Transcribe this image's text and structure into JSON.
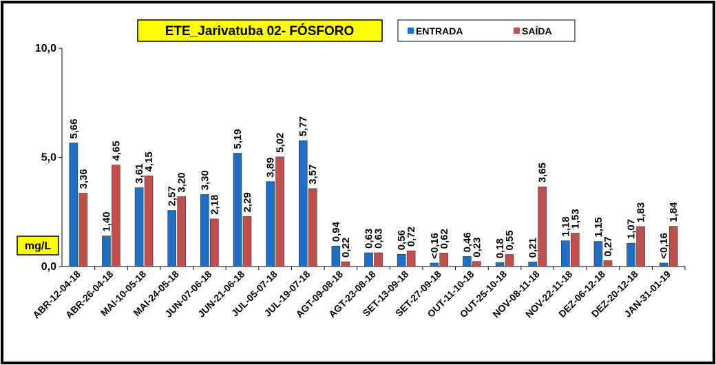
{
  "chart_data": {
    "type": "bar",
    "title": "ETE_Jarivatuba 02- FÓSFORO",
    "y_label": "mg/L",
    "categories": [
      "ABR-12-04-18",
      "ABR-26-04-18",
      "MAI-10-05-18",
      "MAI-24-05-18",
      "JUN-07-06-18",
      "JUN-21-06-18",
      "JUL-05-07-18",
      "JUL-19-07-18",
      "AGT-09-08-18",
      "AGT-23-08-18",
      "SET-13-09-18",
      "SET-27-09-18",
      "OUT-11-10-18",
      "OUT-25-10-18",
      "NOV-08-11-18",
      "NOV-22-11-18",
      "DEZ-06-12-18",
      "DEZ-20-12-18",
      "JAN-31-01-19"
    ],
    "series": [
      {
        "name": "ENTRADA",
        "color": "#1f6fc5",
        "values": [
          5.66,
          1.4,
          3.61,
          2.57,
          3.3,
          5.19,
          3.89,
          5.77,
          0.94,
          0.63,
          0.56,
          0.16,
          0.46,
          0.18,
          0.21,
          1.18,
          1.15,
          1.07,
          0.16
        ],
        "value_labels": [
          "5,66",
          "1,40",
          "3,61",
          "2,57",
          "3,30",
          "5,19",
          "3,89",
          "5,77",
          "0,94",
          "0,63",
          "0,56",
          "<0,16",
          "0,46",
          "0,18",
          "0,21",
          "1,18",
          "1,15",
          "1,07",
          "<0,16"
        ]
      },
      {
        "name": "SAÍDA",
        "color": "#c0504d",
        "values": [
          3.36,
          4.65,
          4.15,
          3.2,
          2.18,
          2.29,
          5.02,
          3.57,
          0.22,
          0.63,
          0.72,
          0.62,
          0.23,
          0.55,
          3.65,
          1.53,
          0.27,
          1.83,
          1.84
        ],
        "value_labels": [
          "3,36",
          "4,65",
          "4,15",
          "3,20",
          "2,18",
          "2,29",
          "5,02",
          "3,57",
          "0,22",
          "0,63",
          "0,72",
          "0,62",
          "0,23",
          "0,55",
          "3,65",
          "1,53",
          "0,27",
          "1,83",
          "1,84"
        ]
      }
    ],
    "ylim": [
      0,
      10
    ],
    "yticks": [
      {
        "value": 0,
        "label": "0,0"
      },
      {
        "value": 5,
        "label": "5,0"
      },
      {
        "value": 10,
        "label": "10,0"
      }
    ]
  }
}
